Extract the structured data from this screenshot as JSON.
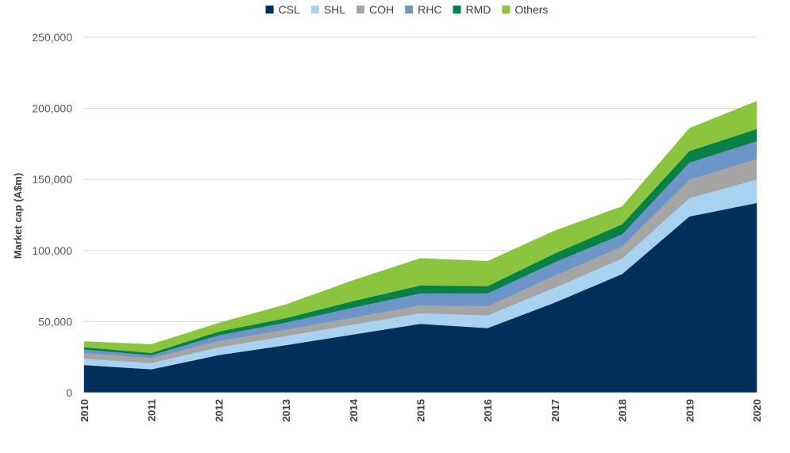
{
  "chart_data": {
    "type": "area",
    "stacked": true,
    "x": [
      "2010",
      "2011",
      "2012",
      "2013",
      "2014",
      "2015",
      "2016",
      "2017",
      "2018",
      "2019",
      "2020"
    ],
    "series": [
      {
        "name": "CSL",
        "color": "#002f5a",
        "values": [
          19500,
          16500,
          26500,
          33500,
          41000,
          48500,
          45500,
          63500,
          83500,
          124000,
          133500
        ]
      },
      {
        "name": "SHL",
        "color": "#a9d1f0",
        "values": [
          4500,
          4500,
          5500,
          6500,
          7000,
          7500,
          9000,
          10500,
          11000,
          13000,
          16500
        ]
      },
      {
        "name": "COH",
        "color": "#a5a5a5",
        "values": [
          4000,
          3500,
          4500,
          4500,
          5000,
          5500,
          6500,
          8500,
          8500,
          13000,
          14500
        ]
      },
      {
        "name": "RHC",
        "color": "#6d95c8",
        "values": [
          2500,
          2000,
          4000,
          5000,
          7000,
          8500,
          9000,
          9500,
          8500,
          12000,
          12500
        ]
      },
      {
        "name": "RMD",
        "color": "#078145",
        "values": [
          1500,
          1500,
          2500,
          3000,
          4500,
          5500,
          5000,
          6000,
          7000,
          8000,
          8500
        ]
      },
      {
        "name": "Others",
        "color": "#8bc53f",
        "values": [
          4000,
          6000,
          6000,
          9500,
          14500,
          19000,
          17500,
          16000,
          12500,
          16000,
          19500
        ]
      }
    ],
    "ylabel": "Market cap (A$m)",
    "ylim": [
      0,
      250000
    ],
    "y_ticks": [
      "0",
      "50,000",
      "100,000",
      "150,000",
      "200,000",
      "250,000"
    ],
    "y_tick_values": [
      0,
      50000,
      100000,
      150000,
      200000,
      250000
    ],
    "grid": true,
    "legend_position": "top-center"
  }
}
